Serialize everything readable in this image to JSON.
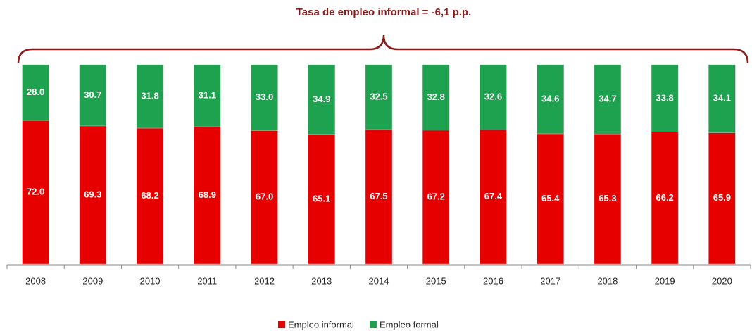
{
  "chart_data": {
    "type": "stacked_bar",
    "annotation": "Tasa de empleo informal = -6,1 p.p.",
    "categories": [
      "2008",
      "2009",
      "2010",
      "2011",
      "2012",
      "2013",
      "2014",
      "2015",
      "2016",
      "2017",
      "2018",
      "2019",
      "2020"
    ],
    "series": [
      {
        "name": "Empleo informal",
        "color": "#e60000",
        "values": [
          72.0,
          69.3,
          68.2,
          68.9,
          67.0,
          65.1,
          67.5,
          67.2,
          67.4,
          65.4,
          65.3,
          66.2,
          65.9
        ],
        "value_labels": [
          "72.0",
          "69.3",
          "68.2",
          "68.9",
          "67.0",
          "65.1",
          "67.5",
          "67.2",
          "67.4",
          "65.4",
          "65.3",
          "66.2",
          "65.9"
        ]
      },
      {
        "name": "Empleo formal",
        "color": "#1fa24f",
        "values": [
          28.0,
          30.7,
          31.8,
          31.1,
          33.0,
          34.9,
          32.5,
          32.8,
          32.6,
          34.6,
          34.7,
          33.8,
          34.1
        ],
        "value_labels": [
          "28.0",
          "30.7",
          "31.8",
          "31.1",
          "33.0",
          "34.9",
          "32.5",
          "32.8",
          "32.6",
          "34.6",
          "34.7",
          "33.8",
          "34.1"
        ]
      }
    ],
    "ylim": [
      0,
      100
    ],
    "legend": "bottom"
  }
}
